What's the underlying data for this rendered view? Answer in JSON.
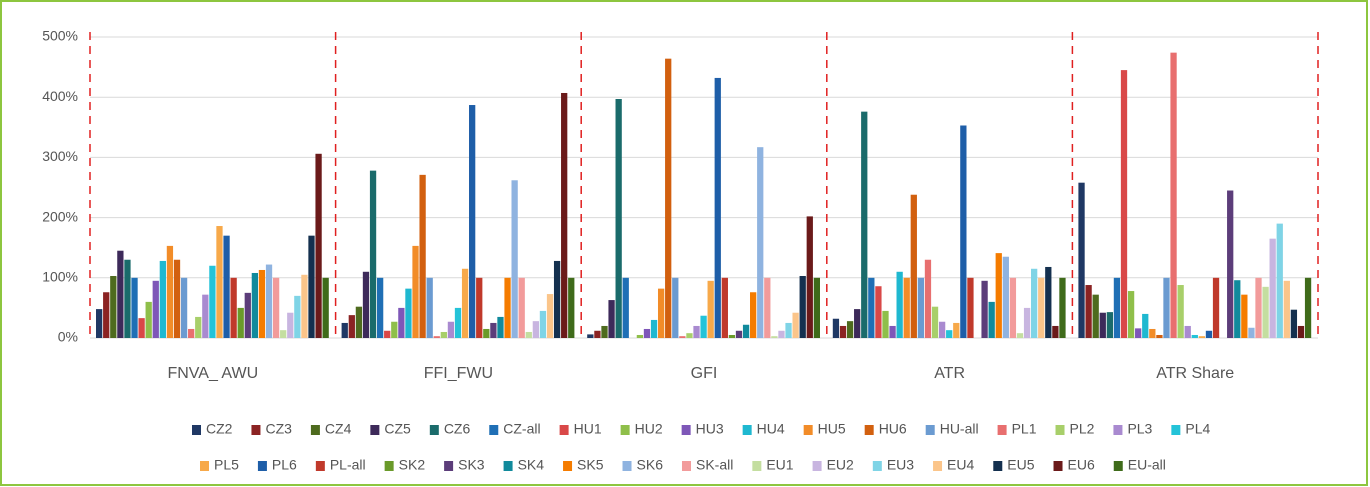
{
  "chart_data": {
    "type": "bar",
    "categories": [
      "FNVA_ AWU",
      "FFI_FWU",
      "GFI",
      "ATR",
      "ATR Share"
    ],
    "ylim": [
      0,
      500
    ],
    "yticks": [
      {
        "value": 0,
        "label": "0%"
      },
      {
        "value": 100,
        "label": "100%"
      },
      {
        "value": 200,
        "label": "200%"
      },
      {
        "value": 300,
        "label": "300%"
      },
      {
        "value": 400,
        "label": "400%"
      },
      {
        "value": 500,
        "label": "500%"
      }
    ],
    "grid": true,
    "legend": "bottom",
    "series": [
      {
        "name": "CZ2",
        "color": "#1f3864",
        "values": [
          48,
          25,
          6,
          32,
          258
        ]
      },
      {
        "name": "CZ3",
        "color": "#8b2323",
        "values": [
          76,
          38,
          12,
          20,
          88
        ]
      },
      {
        "name": "CZ4",
        "color": "#4e6b1e",
        "values": [
          103,
          52,
          20,
          28,
          72
        ]
      },
      {
        "name": "CZ5",
        "color": "#3d2a5a",
        "values": [
          145,
          110,
          63,
          48,
          42
        ]
      },
      {
        "name": "CZ6",
        "color": "#1a6b6b",
        "values": [
          130,
          278,
          397,
          376,
          43
        ]
      },
      {
        "name": "CZ-all",
        "color": "#1f6fb5",
        "values": [
          100,
          100,
          100,
          100,
          100
        ]
      },
      {
        "name": "HU1",
        "color": "#d94848",
        "values": [
          33,
          12,
          0,
          86,
          445
        ]
      },
      {
        "name": "HU2",
        "color": "#8fbf4a",
        "values": [
          60,
          27,
          5,
          45,
          78
        ]
      },
      {
        "name": "HU3",
        "color": "#7e57b8",
        "values": [
          95,
          50,
          15,
          20,
          16
        ]
      },
      {
        "name": "HU4",
        "color": "#1fb8d0",
        "values": [
          128,
          82,
          30,
          110,
          40
        ]
      },
      {
        "name": "HU5",
        "color": "#f28c28",
        "values": [
          153,
          153,
          82,
          100,
          15
        ]
      },
      {
        "name": "HU6",
        "color": "#d2600f",
        "values": [
          130,
          271,
          464,
          238,
          5
        ]
      },
      {
        "name": "HU-all",
        "color": "#6b9bd1",
        "values": [
          100,
          100,
          100,
          100,
          100
        ]
      },
      {
        "name": "PL1",
        "color": "#e86f6f",
        "values": [
          15,
          3,
          3,
          130,
          474
        ]
      },
      {
        "name": "PL2",
        "color": "#a8cf6a",
        "values": [
          35,
          10,
          8,
          52,
          88
        ]
      },
      {
        "name": "PL3",
        "color": "#a98ad0",
        "values": [
          72,
          27,
          20,
          27,
          20
        ]
      },
      {
        "name": "PL4",
        "color": "#24c3d8",
        "values": [
          120,
          50,
          37,
          13,
          5
        ]
      },
      {
        "name": "PL5",
        "color": "#f7a94a",
        "values": [
          186,
          115,
          95,
          25,
          3
        ]
      },
      {
        "name": "PL6",
        "color": "#1e5ea8",
        "values": [
          170,
          387,
          432,
          353,
          12
        ]
      },
      {
        "name": "PL-all",
        "color": "#c0392b",
        "values": [
          100,
          100,
          100,
          100,
          100
        ]
      },
      {
        "name": "SK2",
        "color": "#6a9a2a",
        "values": [
          50,
          15,
          5,
          0,
          0
        ]
      },
      {
        "name": "SK3",
        "color": "#5c3d7a",
        "values": [
          75,
          25,
          12,
          95,
          245
        ]
      },
      {
        "name": "SK4",
        "color": "#118a9c",
        "values": [
          108,
          35,
          22,
          60,
          96
        ]
      },
      {
        "name": "SK5",
        "color": "#f57c00",
        "values": [
          113,
          100,
          76,
          141,
          72
        ]
      },
      {
        "name": "SK6",
        "color": "#8fb3e0",
        "values": [
          122,
          262,
          317,
          135,
          17
        ]
      },
      {
        "name": "SK-all",
        "color": "#f29b9b",
        "values": [
          100,
          100,
          100,
          100,
          100
        ]
      },
      {
        "name": "EU1",
        "color": "#c4dea0",
        "values": [
          13,
          10,
          3,
          8,
          85
        ]
      },
      {
        "name": "EU2",
        "color": "#c8b5e0",
        "values": [
          42,
          28,
          12,
          50,
          165
        ]
      },
      {
        "name": "EU3",
        "color": "#7fd4e6",
        "values": [
          70,
          45,
          25,
          115,
          190
        ]
      },
      {
        "name": "EU4",
        "color": "#fbc58a",
        "values": [
          105,
          73,
          42,
          100,
          95
        ]
      },
      {
        "name": "EU5",
        "color": "#14304f",
        "values": [
          170,
          128,
          103,
          118,
          47
        ]
      },
      {
        "name": "EU6",
        "color": "#6b1a1a",
        "values": [
          306,
          407,
          202,
          20,
          20
        ]
      },
      {
        "name": "EU-all",
        "color": "#3f6b1a",
        "values": [
          100,
          100,
          100,
          100,
          100
        ]
      }
    ]
  }
}
